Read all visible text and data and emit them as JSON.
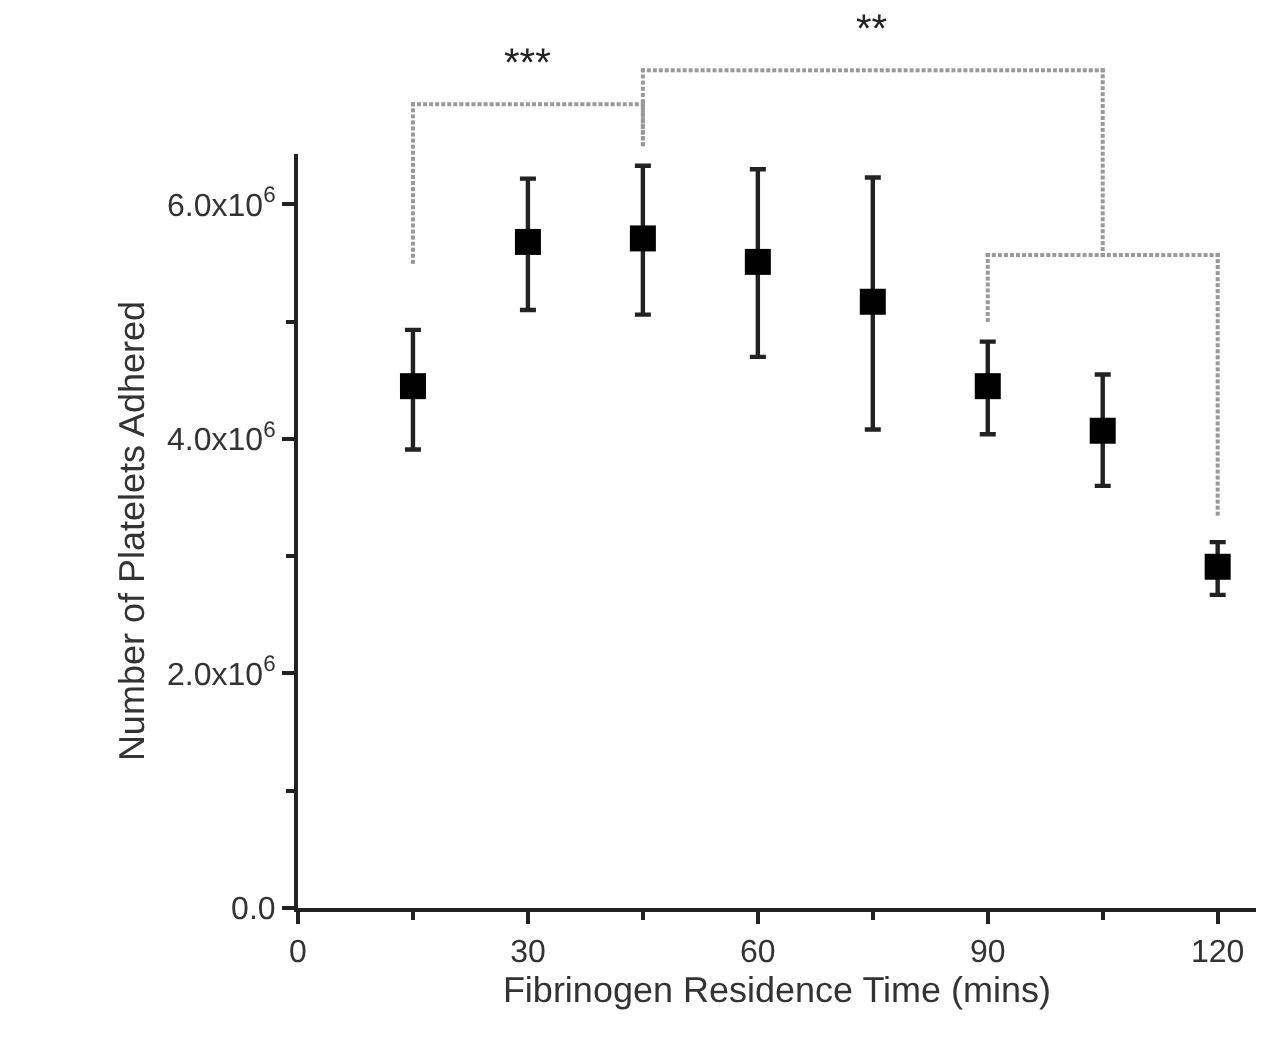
{
  "chart_data": {
    "type": "scatter",
    "xlabel": "Fibrinogen Residence Time (mins)",
    "ylabel": "Number of Platelets Adhered",
    "x": [
      15,
      30,
      45,
      60,
      75,
      90,
      105,
      120
    ],
    "series": [
      {
        "color": "#000000",
        "values": [
          4450000,
          5680000,
          5710000,
          5510000,
          5170000,
          4450000,
          4070000,
          2910000
        ],
        "errors": [
          [
            3910000,
            4930000
          ],
          [
            5100000,
            6220000
          ],
          [
            5060000,
            6330000
          ],
          [
            4700000,
            6300000
          ],
          [
            4080000,
            6230000
          ],
          [
            4040000,
            4830000
          ],
          [
            3600000,
            4550000
          ],
          [
            2670000,
            3120000
          ]
        ]
      }
    ],
    "xlim": [
      0,
      125
    ],
    "xticks": [
      0,
      30,
      60,
      90,
      120
    ],
    "ylim": [
      0,
      6430000
    ],
    "yticks": [
      {
        "value": 0,
        "label": "0.0"
      },
      {
        "value": 2000000,
        "label": "2.0x10$^{6}$"
      },
      {
        "value": 4000000,
        "label": "4.0x10$^{6}$"
      },
      {
        "value": 6000000,
        "label": "6.0x10$^{6}$"
      }
    ],
    "marker": "square",
    "grid": false,
    "annotations": [
      "***",
      "**"
    ]
  }
}
